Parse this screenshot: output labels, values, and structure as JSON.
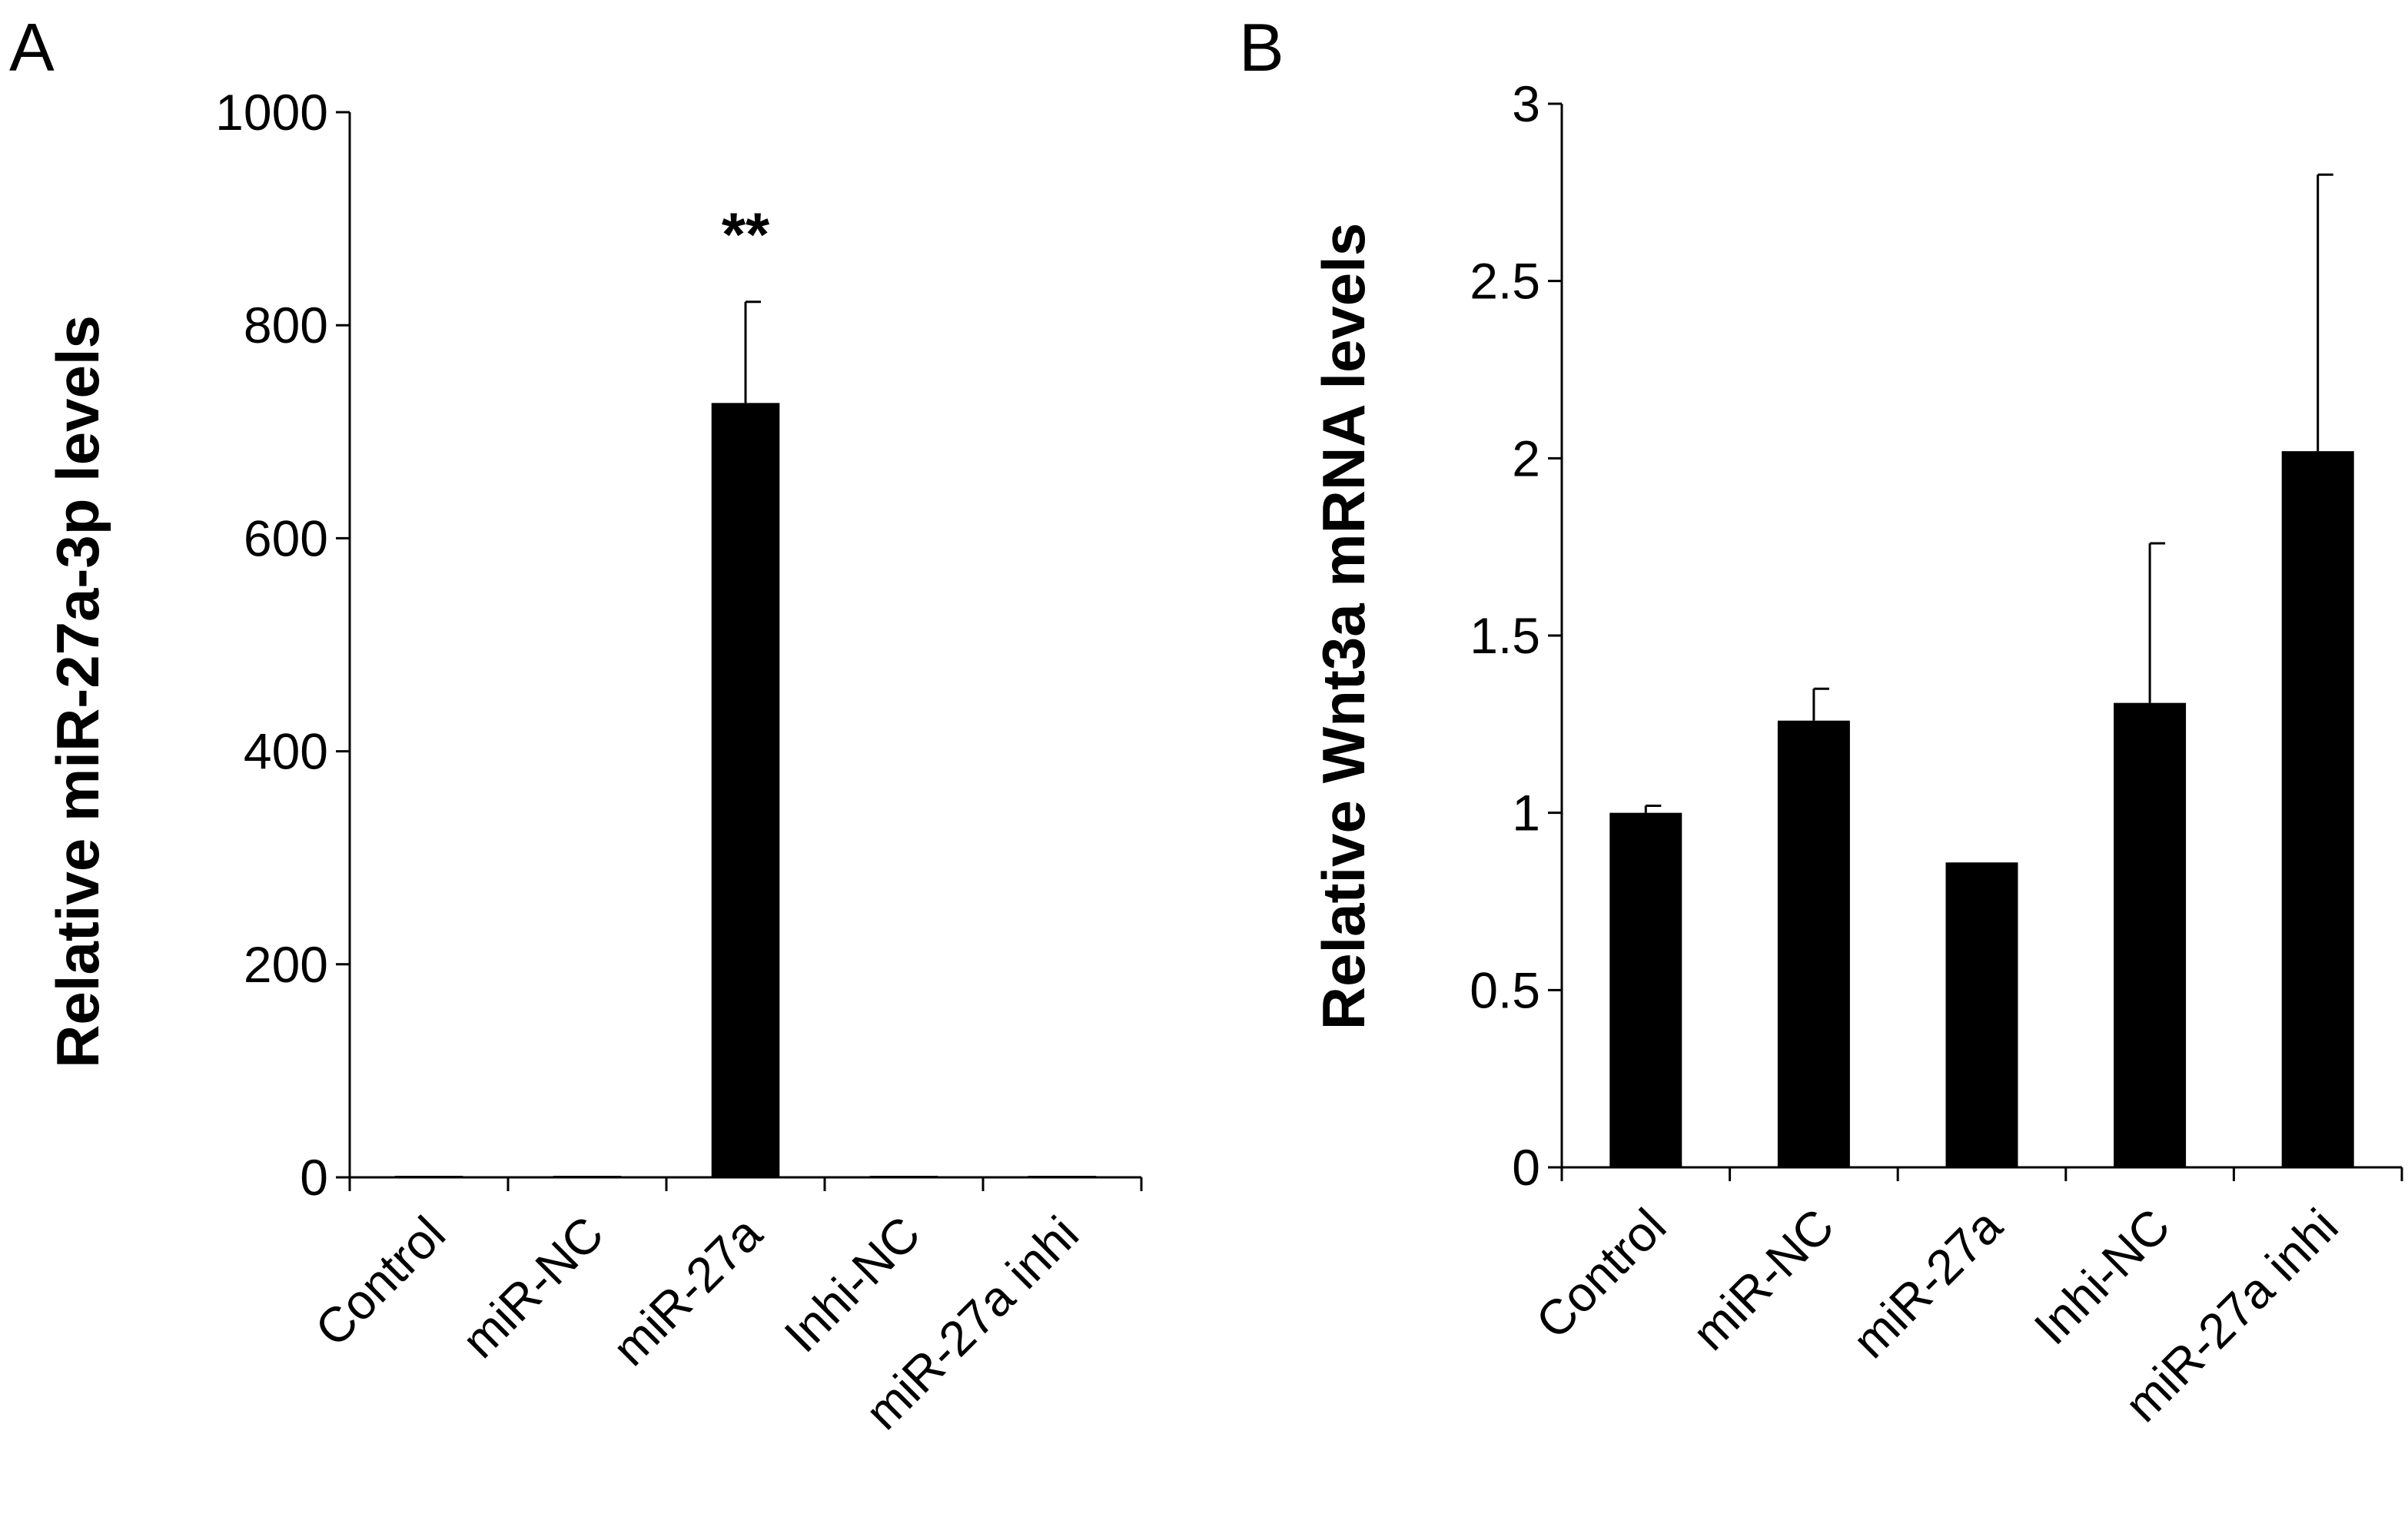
{
  "chart_data": [
    {
      "panel": "A",
      "type": "bar",
      "title": "",
      "xlabel": "",
      "ylabel": "Relative miR-27a-3p levels",
      "categories": [
        "Control",
        "miR-NC",
        "miR-27a",
        "Inhi-NC",
        "miR-27a inhi"
      ],
      "values": [
        1,
        1,
        727,
        1,
        1
      ],
      "errors": [
        0,
        0,
        95,
        0,
        0
      ],
      "ylim": [
        0,
        1000
      ],
      "yticks": [
        0,
        200,
        400,
        600,
        800,
        1000
      ],
      "ytick_labels": [
        "0",
        "200",
        "400",
        "600",
        "800",
        "1000"
      ],
      "annotations": [
        {
          "category": "miR-27a",
          "text": "**"
        }
      ],
      "bar_color": "#000000",
      "grid": false
    },
    {
      "panel": "B",
      "type": "bar",
      "title": "",
      "xlabel": "",
      "ylabel": "Relative Wnt3a mRNA levels",
      "categories": [
        "Control",
        "miR-NC",
        "miR-27a",
        "Inhi-NC",
        "miR-27a inhi"
      ],
      "values": [
        1.0,
        1.26,
        0.86,
        1.31,
        2.02
      ],
      "errors": [
        0.02,
        0.09,
        0,
        0.45,
        0.78
      ],
      "ylim": [
        0,
        3
      ],
      "yticks": [
        0,
        0.5,
        1,
        1.5,
        2,
        2.5,
        3
      ],
      "ytick_labels": [
        "0",
        "0.5",
        "1",
        "1.5",
        "2",
        "2.5",
        "3"
      ],
      "annotations": [],
      "bar_color": "#000000",
      "grid": false
    }
  ]
}
